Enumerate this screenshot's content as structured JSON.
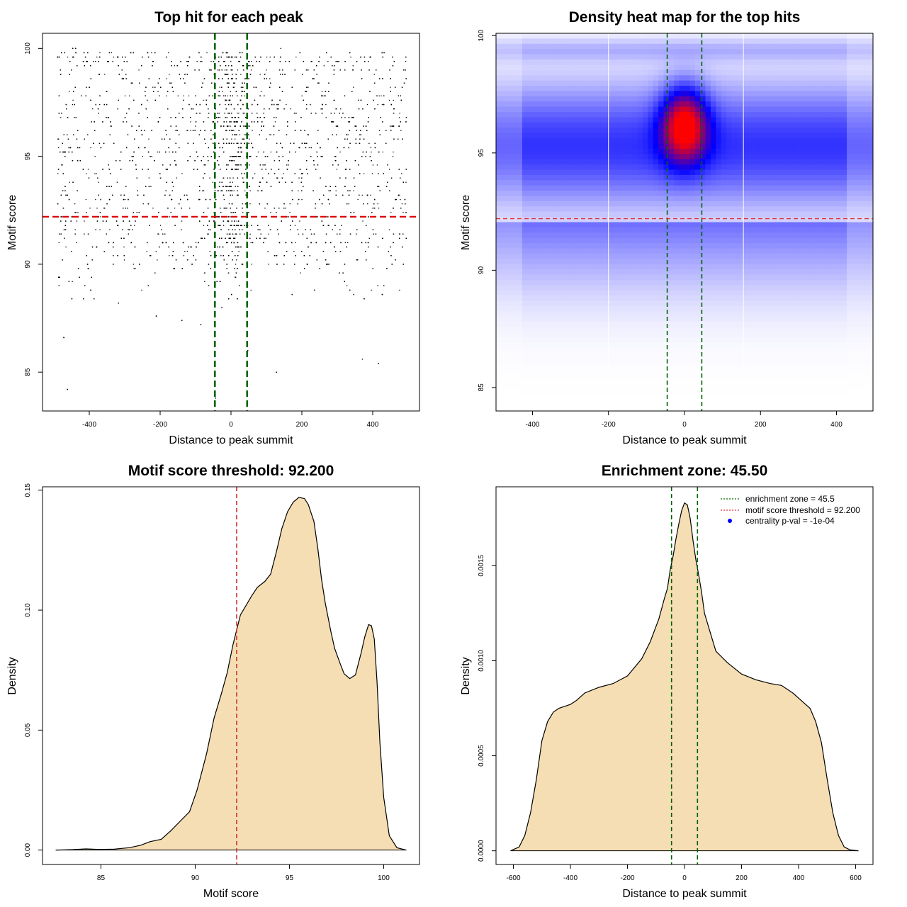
{
  "chart_data": [
    {
      "id": "scatter",
      "type": "scatter",
      "title": "Top hit for each peak",
      "xlabel": "Distance to peak summit",
      "ylabel": "Motif score",
      "xlim": [
        -532,
        532
      ],
      "ylim": [
        83.2,
        100.7
      ],
      "xticks": [
        -400,
        -200,
        0,
        200,
        400
      ],
      "yticks": [
        85,
        90,
        95,
        100
      ],
      "x_range_points": [
        -490,
        495
      ],
      "enrichment_zone": [
        -45.5,
        45.5
      ],
      "score_threshold": 92.2,
      "num_points": 5200,
      "colors": {
        "points": "#000000",
        "vline": "#006400",
        "hline": "#dd0000"
      }
    },
    {
      "id": "heatmap",
      "type": "heatmap",
      "title": "Density heat map for the top hits",
      "xlabel": "Distance to peak summit",
      "ylabel": "Motif score",
      "xlim": [
        -496,
        496
      ],
      "ylim": [
        84.0,
        100.1
      ],
      "xticks": [
        -400,
        -200,
        0,
        200,
        400
      ],
      "yticks": [
        85,
        90,
        95,
        100
      ],
      "peak": {
        "x": 0,
        "y": 96.2
      },
      "enrichment_zone": [
        -45.5,
        45.5
      ],
      "score_threshold": 92.2,
      "white_lines_x": [
        -200,
        155
      ],
      "colors": {
        "low": "#ffffff",
        "mid": "#0000ff",
        "high": "#ff0000",
        "vline": "#006400",
        "hline": "#dd3333"
      }
    },
    {
      "id": "score-density",
      "type": "area",
      "title": "Motif score threshold: 92.200",
      "xlabel": "Motif score",
      "ylabel": "Density",
      "xlim": [
        81.9,
        101.9
      ],
      "ylim": [
        -0.006,
        0.1514
      ],
      "xticks": [
        85,
        90,
        95,
        100
      ],
      "yticks": [
        0.0,
        0.05,
        0.1,
        0.15
      ],
      "ytick_labels": [
        "0.00",
        "0.05",
        "0.10",
        "0.15"
      ],
      "x": [
        82.6,
        83.5,
        84.2,
        84.9,
        85.7,
        86.5,
        87.1,
        87.6,
        88.2,
        88.7,
        89.2,
        89.7,
        90.1,
        90.6,
        91.0,
        91.4,
        91.7,
        92.0,
        92.4,
        92.7,
        93.0,
        93.3,
        93.7,
        94.0,
        94.3,
        94.6,
        94.9,
        95.2,
        95.5,
        95.8,
        96.0,
        96.3,
        96.5,
        96.7,
        96.9,
        97.2,
        97.4,
        97.7,
        97.9,
        98.2,
        98.5,
        98.8,
        99.0,
        99.2,
        99.35,
        99.5,
        99.65,
        99.8,
        100.0,
        100.3,
        100.7,
        101.2
      ],
      "y": [
        0.0,
        0.0002,
        0.0005,
        0.0003,
        0.0004,
        0.001,
        0.002,
        0.0035,
        0.0045,
        0.008,
        0.012,
        0.016,
        0.025,
        0.04,
        0.055,
        0.0655,
        0.074,
        0.0855,
        0.098,
        0.102,
        0.106,
        0.1095,
        0.112,
        0.115,
        0.124,
        0.134,
        0.141,
        0.145,
        0.147,
        0.1465,
        0.144,
        0.137,
        0.126,
        0.113,
        0.103,
        0.091,
        0.084,
        0.0775,
        0.0735,
        0.0715,
        0.073,
        0.082,
        0.089,
        0.094,
        0.0935,
        0.088,
        0.07,
        0.045,
        0.022,
        0.006,
        0.001,
        0.0
      ],
      "threshold": 92.2,
      "colors": {
        "fill": "#f5deb3",
        "line": "#000000",
        "vline": "#cc3333"
      }
    },
    {
      "id": "distance-density",
      "type": "area",
      "title": "Enrichment zone: 45.50",
      "xlabel": "Distance to peak summit",
      "ylabel": "Density",
      "xlim": [
        -661,
        661
      ],
      "ylim": [
        -7.2e-05,
        0.001915
      ],
      "xticks": [
        -600,
        -400,
        -200,
        0,
        200,
        400,
        600
      ],
      "yticks": [
        0.0,
        0.0005,
        0.001,
        0.0015
      ],
      "ytick_labels": [
        "0.0000",
        "0.0005",
        "0.0010",
        "0.0015"
      ],
      "x": [
        -610,
        -580,
        -560,
        -540,
        -520,
        -500,
        -480,
        -460,
        -440,
        -420,
        -400,
        -380,
        -350,
        -300,
        -250,
        -200,
        -150,
        -120,
        -90,
        -70,
        -60,
        -50,
        -40,
        -30,
        -20,
        -10,
        0,
        10,
        20,
        30,
        40,
        50,
        60,
        70,
        90,
        110,
        150,
        200,
        250,
        300,
        340,
        380,
        410,
        440,
        460,
        480,
        500,
        520,
        540,
        560,
        580,
        610
      ],
      "y": [
        0.0,
        2e-05,
        8e-05,
        0.0002,
        0.00037,
        0.00058,
        0.00068,
        0.00073,
        0.00075,
        0.00076,
        0.00077,
        0.00079,
        0.00083,
        0.00086,
        0.00088,
        0.00092,
        0.00101,
        0.0011,
        0.00122,
        0.00133,
        0.00138,
        0.00148,
        0.00155,
        0.00164,
        0.00172,
        0.00179,
        0.00183,
        0.00182,
        0.00175,
        0.00163,
        0.00153,
        0.00145,
        0.00136,
        0.00125,
        0.00115,
        0.00105,
        0.00099,
        0.00093,
        0.0009,
        0.00088,
        0.00087,
        0.00083,
        0.00079,
        0.00075,
        0.00068,
        0.00057,
        0.00038,
        0.0002,
        8e-05,
        2e-05,
        5e-06,
        0.0
      ],
      "enrichment_zone": [
        -45.5,
        45.5
      ],
      "colors": {
        "fill": "#f5deb3",
        "line": "#000000",
        "vline": "#006400"
      },
      "legend": {
        "position": "top-right",
        "entries": [
          {
            "label": "enrichment zone = 45.5",
            "style": "dotted-line",
            "color": "#006400"
          },
          {
            "label": "motif score threshold = 92.200",
            "style": "dotted-line",
            "color": "#dd3333"
          },
          {
            "label": "centrality p-val = -1e-04",
            "style": "point",
            "color": "#0000ff"
          }
        ]
      }
    }
  ]
}
